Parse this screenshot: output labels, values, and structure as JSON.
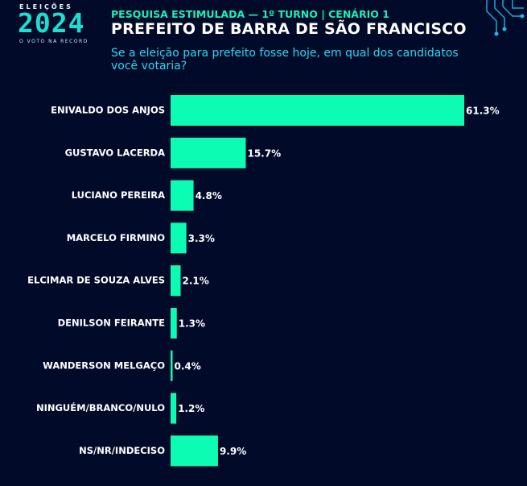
{
  "header": {
    "logo_top": "ELEIÇÕES",
    "logo_year": "2024",
    "logo_sub": "O VOTO NA RECORD",
    "supertitle": "PESQUISA ESTIMULADA — 1º TURNO | CENÁRIO 1",
    "title": "PREFEITO DE BARRA DE SÃO FRANCISCO",
    "question": "Se a eleição para prefeito fosse hoje, em qual dos candidatos você votaria?"
  },
  "colors": {
    "background": "#020a2a",
    "bar": "#0dfcb4",
    "supertitle": "#19f0b8",
    "question": "#27d8f0"
  },
  "chart_data": {
    "type": "bar",
    "orientation": "horizontal",
    "categories": [
      "ENIVALDO DOS ANJOS",
      "GUSTAVO LACERDA",
      "LUCIANO PEREIRA",
      "MARCELO FIRMINO",
      "ELCIMAR DE SOUZA ALVES",
      "DENILSON FEIRANTE",
      "WANDERSON MELGAÇO",
      "NINGUÉM/BRANCO/NULO",
      "NS/NR/INDECISO"
    ],
    "values": [
      61.3,
      15.7,
      4.8,
      3.3,
      2.1,
      1.3,
      0.4,
      1.2,
      9.9
    ],
    "value_labels": [
      "61.3%",
      "15.7%",
      "4.8%",
      "3.3%",
      "2.1%",
      "1.3%",
      "0.4%",
      "1.2%",
      "9.9%"
    ],
    "xlim": [
      0,
      61.3
    ],
    "grid": false,
    "legend": "none"
  }
}
